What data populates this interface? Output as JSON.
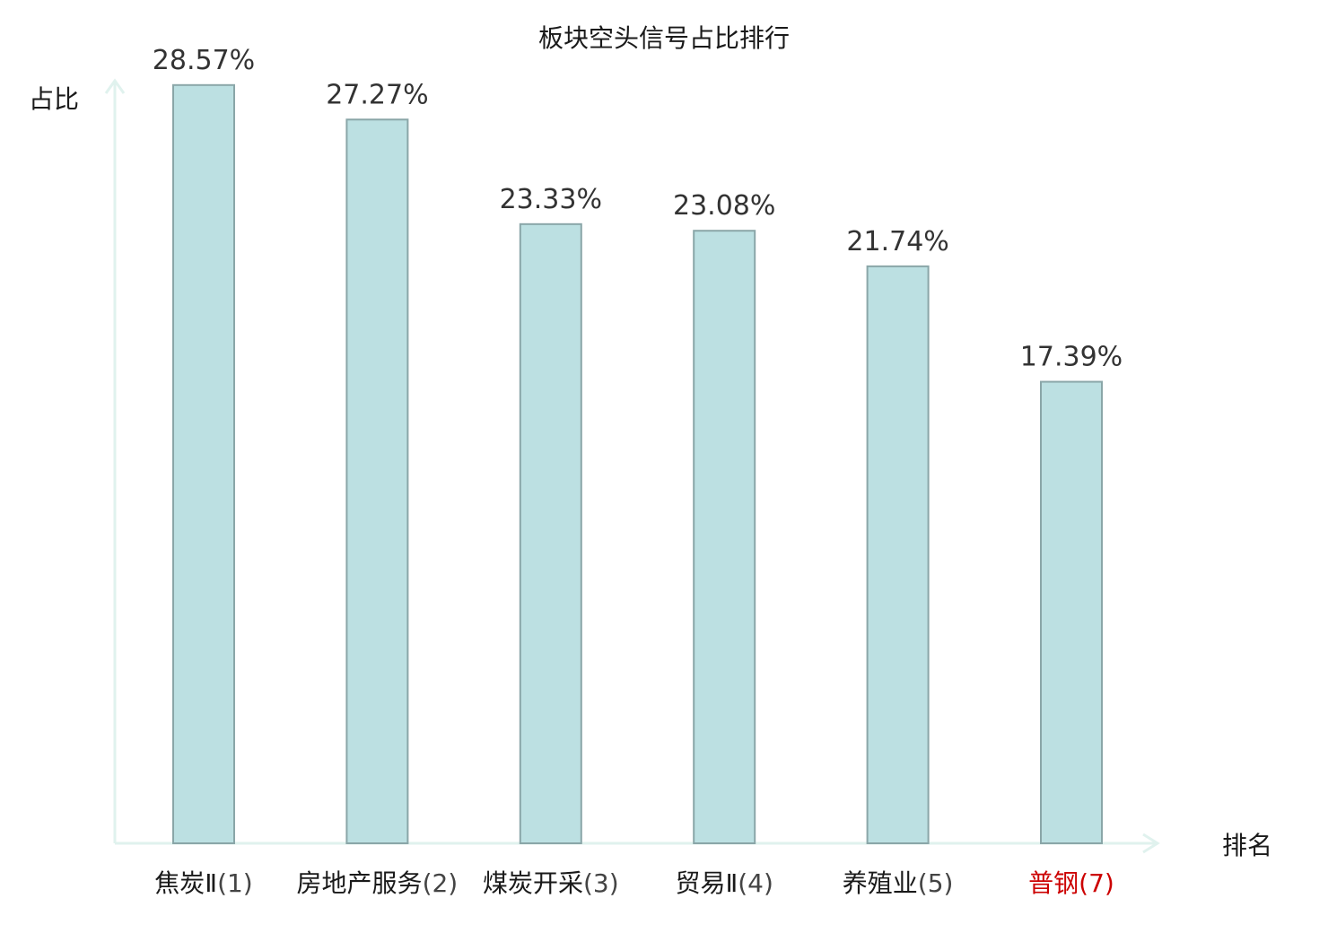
{
  "chart_data": {
    "type": "bar",
    "title": "板块空头信号占比排行",
    "xlabel": "排名",
    "ylabel": "占比",
    "ylim": [
      0,
      30
    ],
    "grid": false,
    "legend": "none",
    "categories": [
      {
        "name": "焦炭Ⅱ",
        "rank": "(1)"
      },
      {
        "name": "房地产服务",
        "rank": "(2)"
      },
      {
        "name": "煤炭开采",
        "rank": "(3)"
      },
      {
        "name": "贸易Ⅱ",
        "rank": "(4)"
      },
      {
        "name": "养殖业",
        "rank": "(5)"
      },
      {
        "name": "普钢",
        "rank": "(7)"
      }
    ],
    "values": [
      28.57,
      27.27,
      23.33,
      23.08,
      21.74,
      17.39
    ],
    "value_labels": [
      "28.57%",
      "27.27%",
      "23.33%",
      "23.08%",
      "21.74%",
      "17.39%"
    ],
    "highlight_index": 5,
    "colors": {
      "bar_fill": "#bce0e2",
      "bar_stroke": "#8aa6a8",
      "axis": "#e0f2ee",
      "highlight": "#cc0000"
    }
  }
}
